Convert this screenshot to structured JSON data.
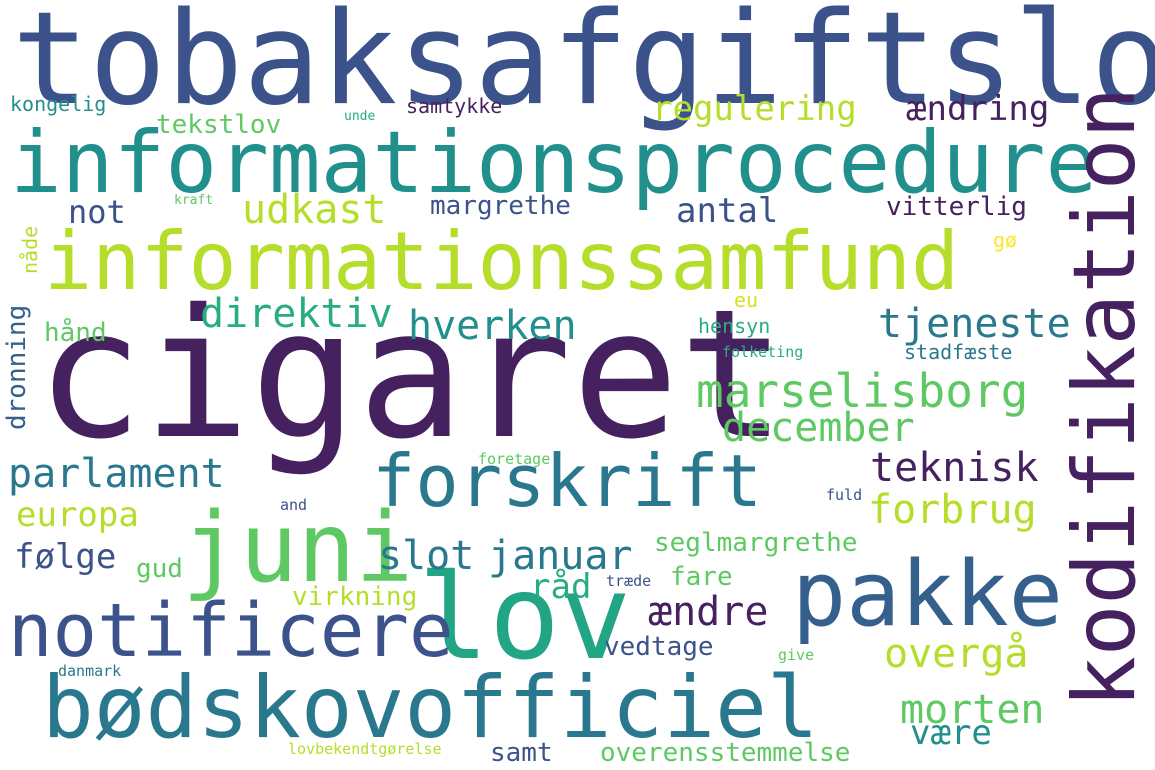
{
  "palette": {
    "background": "#ffffff",
    "purple": "#46215f",
    "deep_blue": "#3b528b",
    "blue": "#355f8d",
    "teal": "#21908d",
    "green": "#27ad81",
    "light_green": "#5ec962",
    "yellow_green": "#b5de2b",
    "yellow": "#fde725"
  },
  "words": [
    {
      "text": "tobaksafgiftslov",
      "color": "#3b528b"
    },
    {
      "text": "informationsprocedure",
      "color": "#21908d"
    },
    {
      "text": "informationssamfund",
      "color": "#b5de2b"
    },
    {
      "text": "cigaret",
      "color": "#46215f"
    },
    {
      "text": "kodifikation",
      "color": "#46215f"
    },
    {
      "text": "forskrift",
      "color": "#2a788e"
    },
    {
      "text": "juni",
      "color": "#5ec962"
    },
    {
      "text": "lov",
      "color": "#21a585"
    },
    {
      "text": "pakke",
      "color": "#355f8d"
    },
    {
      "text": "notificere",
      "color": "#3b528b"
    },
    {
      "text": "bødskovofficiel",
      "color": "#2a788e"
    },
    {
      "text": "kongelig",
      "color": "#21908d"
    },
    {
      "text": "unde",
      "color": "#27ad81"
    },
    {
      "text": "samtykke",
      "color": "#46215f"
    },
    {
      "text": "regulering",
      "color": "#b5de2b"
    },
    {
      "text": "ændring",
      "color": "#46215f"
    },
    {
      "text": "tekstlov",
      "color": "#5ec962"
    },
    {
      "text": "not",
      "color": "#3b528b"
    },
    {
      "text": "kraft",
      "color": "#5ec962"
    },
    {
      "text": "udkast",
      "color": "#b5de2b"
    },
    {
      "text": "margrethe",
      "color": "#3b528b"
    },
    {
      "text": "antal",
      "color": "#3b528b"
    },
    {
      "text": "vitterlig",
      "color": "#46215f"
    },
    {
      "text": "nåde",
      "color": "#b5de2b"
    },
    {
      "text": "gø",
      "color": "#fde725"
    },
    {
      "text": "dronning",
      "color": "#355f8d"
    },
    {
      "text": "direktiv",
      "color": "#27ad81"
    },
    {
      "text": "hverken",
      "color": "#21908d"
    },
    {
      "text": "eu",
      "color": "#d8e219"
    },
    {
      "text": "tjeneste",
      "color": "#2a788e"
    },
    {
      "text": "hånd",
      "color": "#5ec962"
    },
    {
      "text": "hensyn",
      "color": "#27ad81"
    },
    {
      "text": "folketing",
      "color": "#27ad81"
    },
    {
      "text": "stadfæste",
      "color": "#2a788e"
    },
    {
      "text": "marselisborg",
      "color": "#5ec962"
    },
    {
      "text": "december",
      "color": "#5ec962"
    },
    {
      "text": "parlament",
      "color": "#2a788e"
    },
    {
      "text": "teknisk",
      "color": "#46215f"
    },
    {
      "text": "foretage",
      "color": "#5ec962"
    },
    {
      "text": "europa",
      "color": "#b5de2b"
    },
    {
      "text": "forbrug",
      "color": "#b5de2b"
    },
    {
      "text": "and",
      "color": "#3b528b"
    },
    {
      "text": "fuld",
      "color": "#3b528b"
    },
    {
      "text": "seglmargrethe",
      "color": "#5ec962"
    },
    {
      "text": "følge",
      "color": "#3b528b"
    },
    {
      "text": "gud",
      "color": "#5ec962"
    },
    {
      "text": "slot",
      "color": "#2a788e"
    },
    {
      "text": "januar",
      "color": "#2a788e"
    },
    {
      "text": "fare",
      "color": "#5ec962"
    },
    {
      "text": "råd",
      "color": "#27ad81"
    },
    {
      "text": "træde",
      "color": "#3b528b"
    },
    {
      "text": "virkning",
      "color": "#b5de2b"
    },
    {
      "text": "ændre",
      "color": "#46215f"
    },
    {
      "text": "overgå",
      "color": "#b5de2b"
    },
    {
      "text": "vedtage",
      "color": "#3b528b"
    },
    {
      "text": "danmark",
      "color": "#2a788e"
    },
    {
      "text": "give",
      "color": "#5ec962"
    },
    {
      "text": "morten",
      "color": "#5ec962"
    },
    {
      "text": "være",
      "color": "#21908d"
    },
    {
      "text": "lovbekendtgørelse",
      "color": "#b5de2b"
    },
    {
      "text": "samt",
      "color": "#3b528b"
    },
    {
      "text": "overensstemmelse",
      "color": "#5ec962"
    }
  ]
}
